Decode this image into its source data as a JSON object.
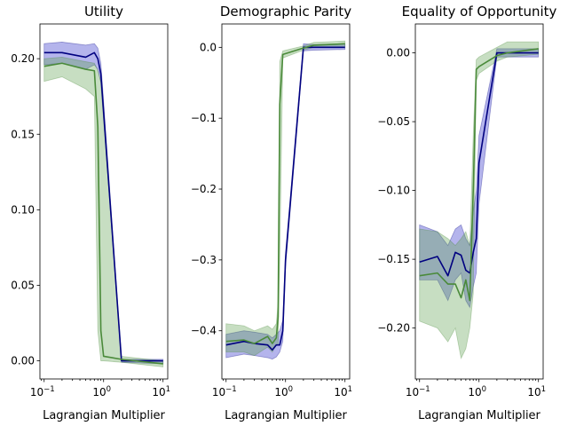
{
  "chart_data": [
    {
      "type": "line",
      "title": "Utility",
      "xlabel": "Lagrangian Multiplier",
      "xscale": "log",
      "xlim": [
        0.085,
        12
      ],
      "ylim": [
        -0.012,
        0.223
      ],
      "yticks": [
        0.0,
        0.05,
        0.1,
        0.15,
        0.2
      ],
      "ytick_labels": [
        "0.00",
        "0.05",
        "0.10",
        "0.15",
        "0.20"
      ],
      "series": [
        {
          "color": "#000080",
          "x": [
            0.1,
            0.2,
            0.5,
            0.7,
            0.8,
            0.9,
            1.0,
            2.0,
            10.0
          ],
          "y": [
            0.204,
            0.204,
            0.201,
            0.204,
            0.2,
            0.19,
            0.165,
            0.0,
            0.0
          ],
          "band_lower": [
            0.196,
            0.197,
            0.193,
            0.196,
            0.193,
            0.184,
            0.16,
            -0.001,
            -0.002
          ],
          "band_upper": [
            0.21,
            0.211,
            0.209,
            0.21,
            0.207,
            0.197,
            0.172,
            0.001,
            0.001
          ]
        },
        {
          "color": "#4a8a3a",
          "x": [
            0.1,
            0.2,
            0.5,
            0.7,
            0.8,
            0.9,
            1.0,
            2.0,
            10.0
          ],
          "y": [
            0.195,
            0.197,
            0.193,
            0.192,
            0.155,
            0.02,
            0.003,
            0.001,
            -0.002
          ],
          "band_lower": [
            0.185,
            0.188,
            0.18,
            0.175,
            0.02,
            0.0,
            0.0,
            -0.001,
            -0.004
          ],
          "band_upper": [
            0.2,
            0.201,
            0.198,
            0.197,
            0.192,
            0.185,
            0.16,
            0.003,
            0.0
          ]
        }
      ]
    },
    {
      "type": "line",
      "title": "Demographic Parity",
      "xlabel": "Lagrangian Multiplier",
      "xscale": "log",
      "xlim": [
        0.085,
        12
      ],
      "ylim": [
        -0.468,
        0.033
      ],
      "yticks": [
        -0.4,
        -0.3,
        -0.2,
        -0.1,
        0.0
      ],
      "ytick_labels": [
        "−0.4",
        "−0.3",
        "−0.2",
        "−0.1",
        "0.0"
      ],
      "series": [
        {
          "color": "#000080",
          "x": [
            0.1,
            0.2,
            0.3,
            0.5,
            0.6,
            0.7,
            0.8,
            0.9,
            1.0,
            2.0,
            3.0,
            10.0
          ],
          "y": [
            -0.42,
            -0.415,
            -0.418,
            -0.42,
            -0.427,
            -0.42,
            -0.42,
            -0.4,
            -0.3,
            0.0,
            0.0,
            0.0
          ],
          "band_lower": [
            -0.438,
            -0.433,
            -0.435,
            -0.438,
            -0.44,
            -0.437,
            -0.43,
            -0.415,
            -0.31,
            -0.005,
            -0.004,
            -0.003
          ],
          "band_upper": [
            -0.405,
            -0.4,
            -0.402,
            -0.405,
            -0.41,
            -0.405,
            -0.4,
            -0.385,
            -0.29,
            0.005,
            0.004,
            0.005
          ]
        },
        {
          "color": "#4a8a3a",
          "x": [
            0.1,
            0.2,
            0.3,
            0.5,
            0.6,
            0.7,
            0.75,
            0.8,
            0.9,
            2.0,
            3.0,
            10.0
          ],
          "y": [
            -0.415,
            -0.413,
            -0.418,
            -0.408,
            -0.418,
            -0.41,
            -0.38,
            -0.08,
            -0.01,
            -0.001,
            0.003,
            0.005
          ],
          "band_lower": [
            -0.43,
            -0.43,
            -0.435,
            -0.423,
            -0.43,
            -0.42,
            -0.42,
            -0.3,
            -0.015,
            -0.004,
            0.0,
            0.0
          ],
          "band_upper": [
            -0.39,
            -0.393,
            -0.4,
            -0.393,
            -0.398,
            -0.39,
            -0.36,
            -0.02,
            -0.005,
            0.002,
            0.007,
            0.009
          ]
        }
      ]
    },
    {
      "type": "line",
      "title": "Equality of Opportunity",
      "xlabel": "Lagrangian Multiplier",
      "xscale": "log",
      "xlim": [
        0.085,
        12
      ],
      "ylim": [
        -0.237,
        0.021
      ],
      "yticks": [
        -0.2,
        -0.15,
        -0.1,
        -0.05,
        0.0
      ],
      "ytick_labels": [
        "−0.20",
        "−0.15",
        "−0.10",
        "−0.05",
        "0.00"
      ],
      "series": [
        {
          "color": "#000080",
          "x": [
            0.1,
            0.2,
            0.3,
            0.4,
            0.5,
            0.6,
            0.7,
            0.8,
            0.9,
            1.0,
            2.0,
            10.0
          ],
          "y": [
            -0.152,
            -0.148,
            -0.162,
            -0.145,
            -0.147,
            -0.158,
            -0.16,
            -0.145,
            -0.135,
            -0.08,
            0.0,
            0.0
          ],
          "band_lower": [
            -0.165,
            -0.165,
            -0.18,
            -0.165,
            -0.16,
            -0.18,
            -0.185,
            -0.17,
            -0.16,
            -0.11,
            -0.003,
            -0.003
          ],
          "band_upper": [
            -0.125,
            -0.13,
            -0.14,
            -0.128,
            -0.125,
            -0.135,
            -0.14,
            -0.115,
            -0.1,
            -0.06,
            0.003,
            0.003
          ]
        },
        {
          "color": "#4a8a3a",
          "x": [
            0.1,
            0.2,
            0.3,
            0.4,
            0.5,
            0.6,
            0.7,
            0.8,
            0.9,
            1.0,
            2.0,
            3.0,
            10.0
          ],
          "y": [
            -0.162,
            -0.16,
            -0.168,
            -0.168,
            -0.178,
            -0.165,
            -0.18,
            -0.1,
            -0.012,
            -0.01,
            -0.002,
            0.0,
            0.003
          ],
          "band_lower": [
            -0.195,
            -0.2,
            -0.21,
            -0.2,
            -0.222,
            -0.215,
            -0.2,
            -0.175,
            -0.02,
            -0.015,
            -0.006,
            -0.003,
            -0.001
          ],
          "band_upper": [
            -0.128,
            -0.13,
            -0.135,
            -0.14,
            -0.135,
            -0.13,
            -0.14,
            -0.06,
            -0.005,
            -0.003,
            0.004,
            0.008,
            0.008
          ]
        }
      ]
    }
  ]
}
